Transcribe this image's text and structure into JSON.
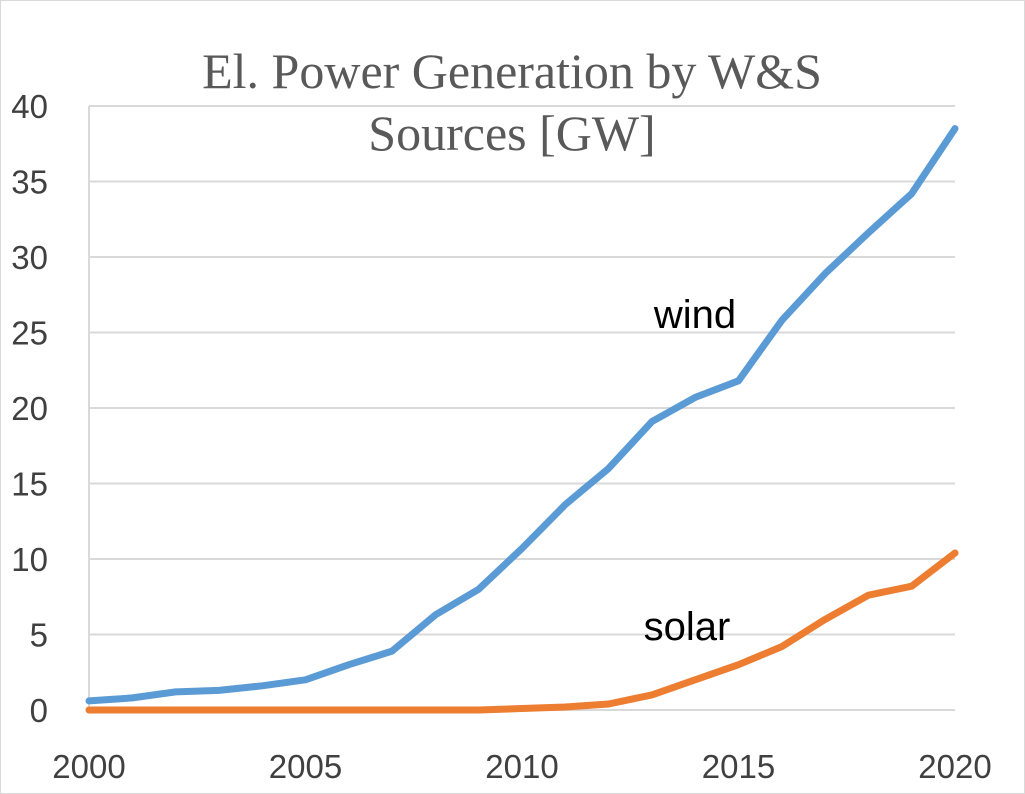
{
  "chart_data": {
    "type": "line",
    "title": "El. Power Generation by W&S Sources [GW]",
    "title_lines": [
      "El. Power Generation by W&S",
      "Sources [GW]"
    ],
    "xlabel": "",
    "ylabel": "",
    "x": [
      2000,
      2001,
      2002,
      2003,
      2004,
      2005,
      2006,
      2007,
      2008,
      2009,
      2010,
      2011,
      2012,
      2013,
      2014,
      2015,
      2016,
      2017,
      2018,
      2019,
      2020
    ],
    "xlim": [
      2000,
      2020
    ],
    "ylim": [
      0,
      40
    ],
    "x_ticks": [
      2000,
      2005,
      2010,
      2015,
      2020
    ],
    "y_ticks": [
      0,
      5,
      10,
      15,
      20,
      25,
      30,
      35,
      40
    ],
    "grid": true,
    "legend": "none (series labeled directly on plot)",
    "series": [
      {
        "name": "wind",
        "color": "#5B9BD5",
        "values": [
          0.6,
          0.8,
          1.2,
          1.3,
          1.6,
          2.0,
          3.0,
          3.9,
          6.3,
          8.0,
          10.7,
          13.6,
          16.0,
          19.1,
          20.7,
          21.8,
          25.8,
          28.9,
          31.6,
          34.2,
          38.5
        ]
      },
      {
        "name": "solar",
        "color": "#ED7D31",
        "values": [
          0.0,
          0.0,
          0.0,
          0.0,
          0.0,
          0.0,
          0.0,
          0.0,
          0.0,
          0.0,
          0.1,
          0.2,
          0.4,
          1.0,
          2.0,
          3.0,
          4.2,
          6.0,
          7.6,
          8.2,
          10.4
        ]
      }
    ]
  }
}
